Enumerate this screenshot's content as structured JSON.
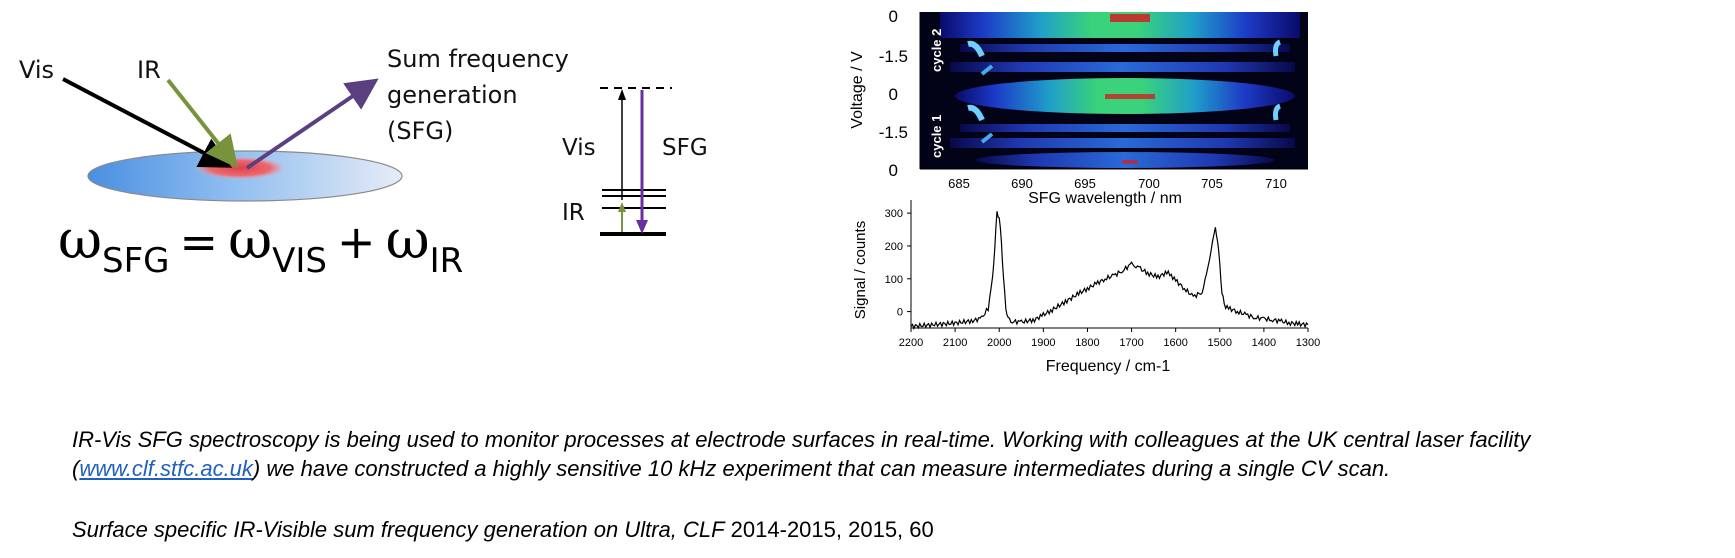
{
  "diagram": {
    "vis_label": "Vis",
    "ir_label": "IR",
    "sfg_label_line1": "Sum frequency",
    "sfg_label_line2": "generation",
    "sfg_label_line3": "(SFG)",
    "equation": {
      "omega": "ω",
      "sfg_sub": "SFG",
      "equals": "=",
      "vis_sub": "VIS",
      "plus": "+",
      "ir_sub": "IR"
    },
    "energy_levels": {
      "vis_label": "Vis",
      "sfg_label": "SFG",
      "ir_label": "IR"
    },
    "colors": {
      "vis_beam": "#000000",
      "ir_beam": "#77933c",
      "sfg_beam": "#5b3f80",
      "surface": "#7db3ee",
      "spot": "#e0404a"
    }
  },
  "heatmap": {
    "ylabel": "Voltage / V",
    "xlabel": "SFG wavelength / nm",
    "y_ticks": [
      "0",
      "-1.5",
      "0",
      "-1.5",
      "0"
    ],
    "x_ticks": [
      "685",
      "690",
      "695",
      "700",
      "705",
      "710"
    ],
    "cycle_labels": [
      "cycle 2",
      "cycle 1"
    ]
  },
  "chart_data": {
    "type": "line",
    "title": "",
    "xlabel": "Frequency / cm-1",
    "ylabel": "Signal / counts",
    "x_ticks": [
      "2200",
      "2100",
      "2000",
      "1900",
      "1800",
      "1700",
      "1600",
      "1500",
      "1400",
      "1300"
    ],
    "y_ticks": [
      "300",
      "200",
      "100",
      "0"
    ],
    "xlim": [
      2200,
      1300
    ],
    "ylim": [
      -50,
      340
    ],
    "x": [
      2200,
      2150,
      2100,
      2060,
      2040,
      2025,
      2015,
      2010,
      2005,
      2000,
      1995,
      1990,
      1985,
      1980,
      1970,
      1950,
      1920,
      1900,
      1880,
      1850,
      1820,
      1800,
      1780,
      1760,
      1740,
      1720,
      1700,
      1690,
      1680,
      1660,
      1640,
      1620,
      1610,
      1600,
      1580,
      1560,
      1540,
      1530,
      1520,
      1510,
      1505,
      1500,
      1495,
      1490,
      1480,
      1460,
      1440,
      1420,
      1400,
      1380,
      1360,
      1340,
      1320,
      1300
    ],
    "y": [
      -45,
      -40,
      -35,
      -28,
      -20,
      10,
      100,
      200,
      300,
      290,
      210,
      100,
      10,
      -20,
      -30,
      -32,
      -25,
      -10,
      5,
      30,
      55,
      70,
      85,
      100,
      110,
      125,
      145,
      140,
      130,
      115,
      105,
      120,
      110,
      95,
      70,
      45,
      60,
      110,
      190,
      250,
      220,
      140,
      60,
      20,
      10,
      0,
      -10,
      -18,
      -22,
      -25,
      -30,
      -35,
      -38,
      -40
    ]
  },
  "caption": {
    "paragraph_start": "IR-Vis SFG spectroscopy is being used to monitor processes at electrode surfaces in real-time. Working with colleagues at the UK central laser facility (",
    "link_text": "www.clf.stfc.ac.uk",
    "paragraph_end": ") we have constructed a highly sensitive 10 kHz experiment that can measure intermediates during a single CV scan.",
    "citation_italic": "Surface specific IR-Visible sum frequency generation on Ultra, CLF",
    "citation_plain": " 2014-2015, 2015, 60"
  }
}
